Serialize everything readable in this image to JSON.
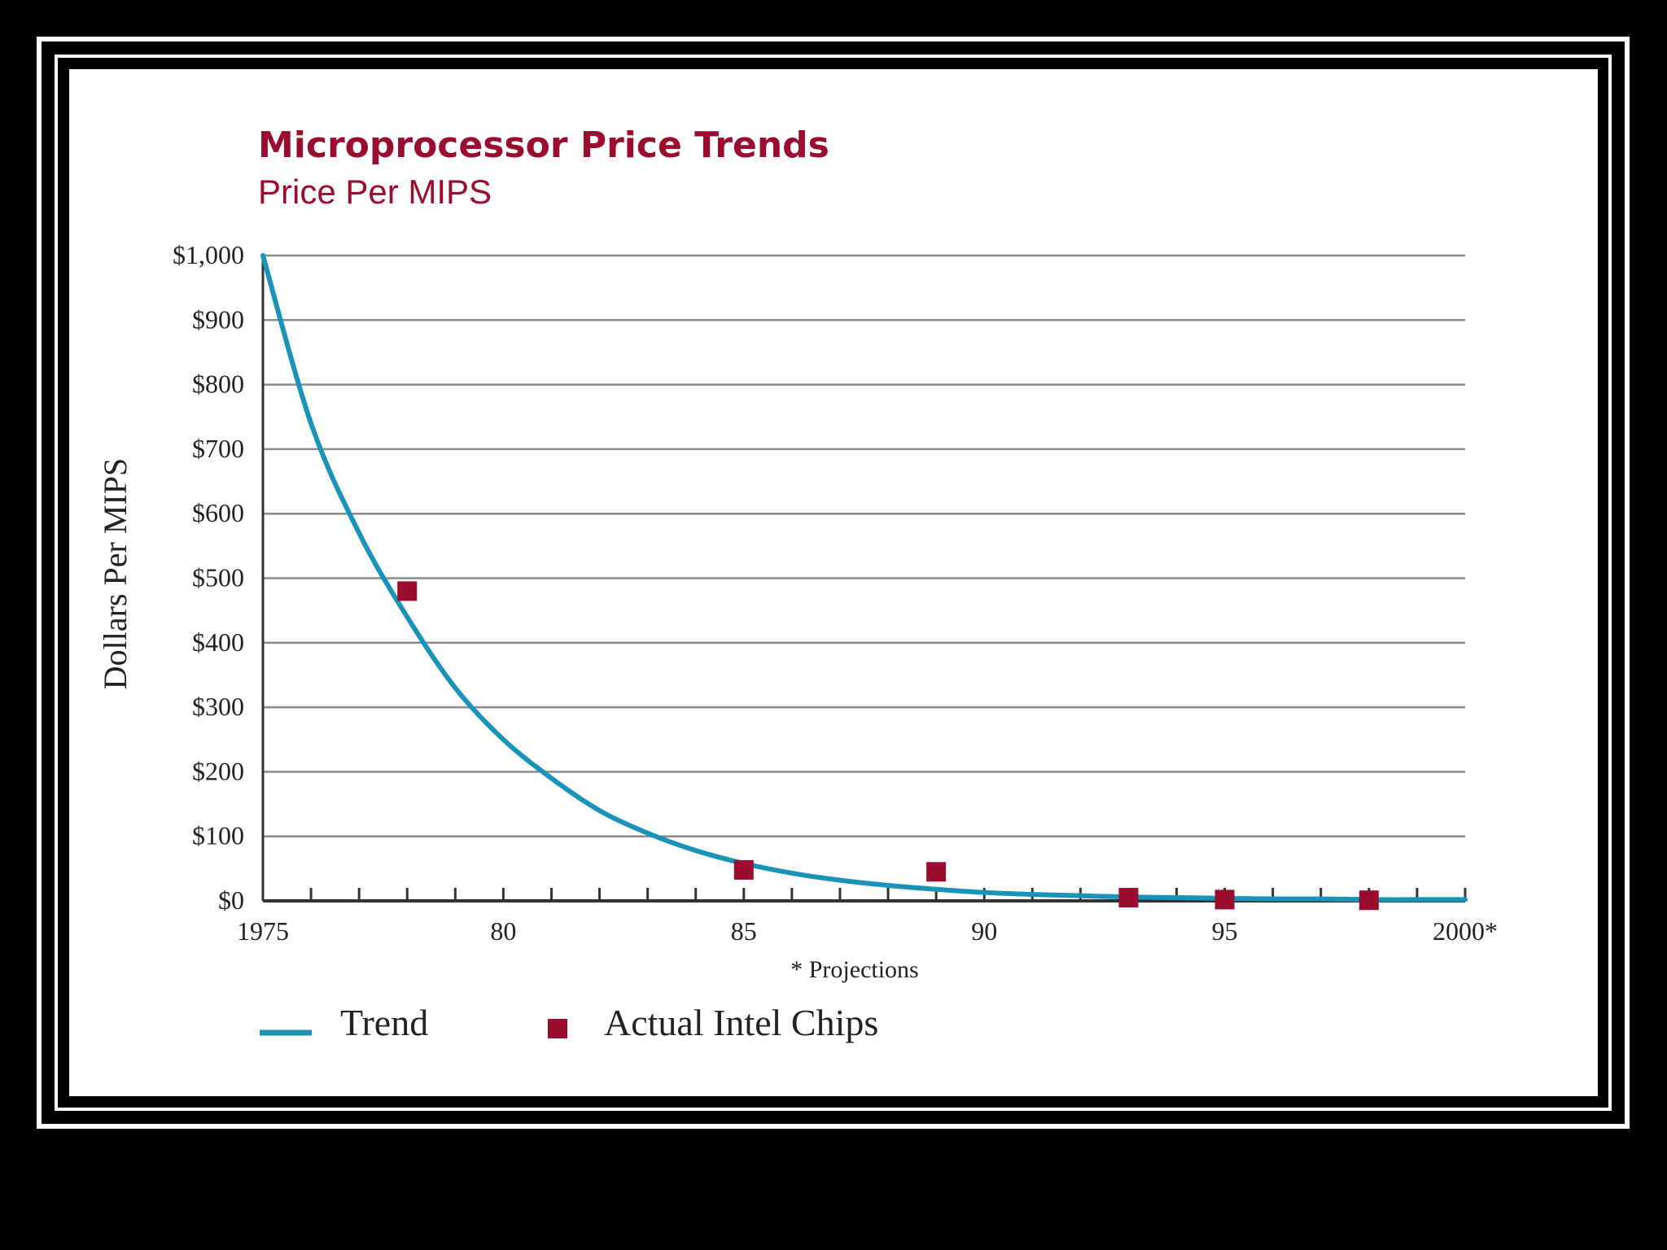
{
  "chart_data": {
    "type": "line",
    "title": "Microprocessor Price Trends",
    "subtitle": "Price Per MIPS",
    "ylabel": "Dollars Per MIPS",
    "xlabel": "",
    "footnote": "* Projections",
    "xlim": [
      1975,
      2000
    ],
    "ylim": [
      0,
      1000
    ],
    "x_ticks": [
      {
        "value": 1975,
        "label": "1975"
      },
      {
        "value": 1980,
        "label": "80"
      },
      {
        "value": 1985,
        "label": "85"
      },
      {
        "value": 1990,
        "label": "90"
      },
      {
        "value": 1995,
        "label": "95"
      },
      {
        "value": 2000,
        "label": "2000*"
      }
    ],
    "y_ticks": [
      {
        "value": 0,
        "label": "$0"
      },
      {
        "value": 100,
        "label": "$100"
      },
      {
        "value": 200,
        "label": "$200"
      },
      {
        "value": 300,
        "label": "$300"
      },
      {
        "value": 400,
        "label": "$400"
      },
      {
        "value": 500,
        "label": "$500"
      },
      {
        "value": 600,
        "label": "$600"
      },
      {
        "value": 700,
        "label": "$700"
      },
      {
        "value": 800,
        "label": "$800"
      },
      {
        "value": 900,
        "label": "$900"
      },
      {
        "value": 1000,
        "label": "$1,000"
      }
    ],
    "grid": true,
    "series": [
      {
        "name": "Trend",
        "kind": "line",
        "color": "#1a93b8",
        "x": [
          1975,
          1976,
          1977,
          1978,
          1979,
          1980,
          1981,
          1982,
          1983,
          1984,
          1985,
          1986,
          1987,
          1988,
          1989,
          1990,
          1991,
          1992,
          1993,
          1994,
          1995,
          1996,
          1997,
          1998,
          1999,
          2000
        ],
        "y": [
          1000,
          740,
          570,
          440,
          330,
          250,
          190,
          140,
          105,
          78,
          58,
          43,
          32,
          24,
          18,
          13,
          10,
          8,
          6,
          5,
          4,
          3,
          3,
          2,
          2,
          2
        ]
      },
      {
        "name": "Actual Intel Chips",
        "kind": "scatter",
        "color": "#9b0d2e",
        "x": [
          1978,
          1985,
          1989,
          1993,
          1995,
          1998
        ],
        "y": [
          480,
          48,
          45,
          5,
          2,
          1
        ]
      }
    ],
    "legend": {
      "position": "bottom-left",
      "items": [
        "Trend",
        "Actual Intel Chips"
      ]
    },
    "colors": {
      "title": "#9b0d2e",
      "grid": "#8a8a8a",
      "axis": "#333333",
      "text": "#222222"
    }
  }
}
